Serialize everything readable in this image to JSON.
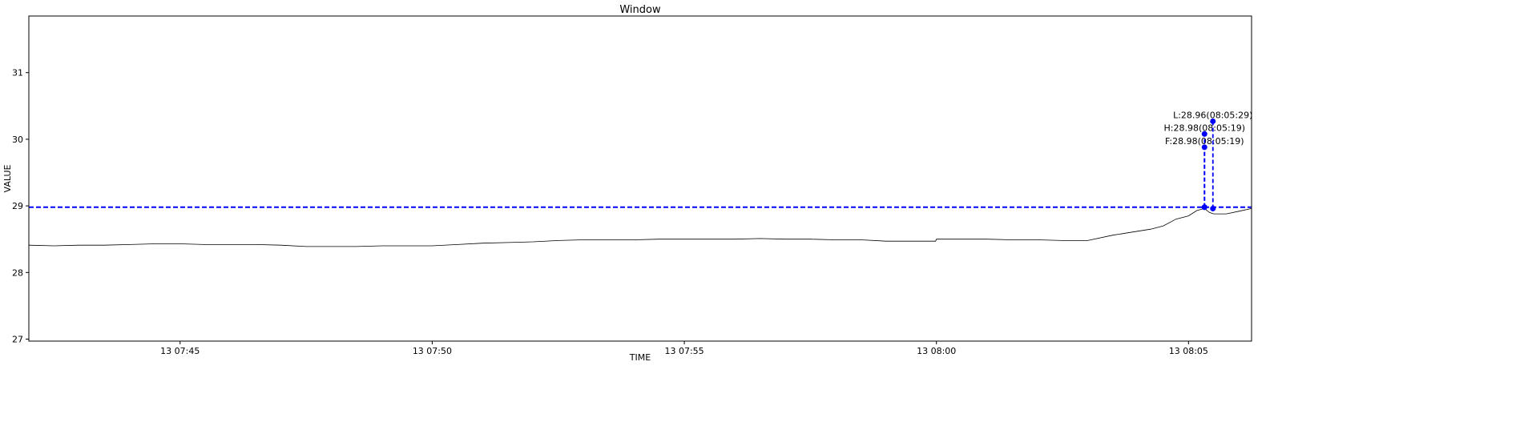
{
  "chart_data": {
    "type": "line",
    "title": "Window",
    "xlabel": "TIME",
    "ylabel": "VALUE",
    "xlim": [
      "07:42:00",
      "08:06:15"
    ],
    "ylim": [
      26.97,
      31.85
    ],
    "x_ticks": [
      {
        "time": "07:45:00",
        "label": "13 07:45"
      },
      {
        "time": "07:50:00",
        "label": "13 07:50"
      },
      {
        "time": "07:55:00",
        "label": "13 07:55"
      },
      {
        "time": "08:00:00",
        "label": "13 08:00"
      },
      {
        "time": "08:05:00",
        "label": "13 08:05"
      }
    ],
    "y_ticks": [
      27,
      28,
      29,
      30,
      31
    ],
    "grid": false,
    "colors": {
      "series": "#000000",
      "markers": "#0000ff"
    },
    "series": [
      {
        "values": [
          [
            "07:42:00",
            28.41
          ],
          [
            "07:42:30",
            28.4
          ],
          [
            "07:43:00",
            28.41
          ],
          [
            "07:43:30",
            28.41
          ],
          [
            "07:44:00",
            28.42
          ],
          [
            "07:44:30",
            28.43
          ],
          [
            "07:45:00",
            28.43
          ],
          [
            "07:45:30",
            28.42
          ],
          [
            "07:46:00",
            28.42
          ],
          [
            "07:46:30",
            28.42
          ],
          [
            "07:47:00",
            28.41
          ],
          [
            "07:47:30",
            28.39
          ],
          [
            "07:48:00",
            28.39
          ],
          [
            "07:48:30",
            28.39
          ],
          [
            "07:49:00",
            28.4
          ],
          [
            "07:49:30",
            28.4
          ],
          [
            "07:50:00",
            28.4
          ],
          [
            "07:50:30",
            28.42
          ],
          [
            "07:51:00",
            28.44
          ],
          [
            "07:51:30",
            28.45
          ],
          [
            "07:52:00",
            28.46
          ],
          [
            "07:52:30",
            28.48
          ],
          [
            "07:53:00",
            28.49
          ],
          [
            "07:53:30",
            28.49
          ],
          [
            "07:54:00",
            28.49
          ],
          [
            "07:54:30",
            28.5
          ],
          [
            "07:55:00",
            28.5
          ],
          [
            "07:55:30",
            28.5
          ],
          [
            "07:56:00",
            28.5
          ],
          [
            "07:56:30",
            28.51
          ],
          [
            "07:57:00",
            28.5
          ],
          [
            "07:57:30",
            28.5
          ],
          [
            "07:58:00",
            28.49
          ],
          [
            "07:58:30",
            28.49
          ],
          [
            "07:59:00",
            28.47
          ],
          [
            "07:59:30",
            28.47
          ],
          [
            "07:59:59",
            28.47
          ],
          [
            "08:00:00",
            28.5
          ],
          [
            "08:00:30",
            28.5
          ],
          [
            "08:01:00",
            28.5
          ],
          [
            "08:01:30",
            28.49
          ],
          [
            "08:02:00",
            28.49
          ],
          [
            "08:02:30",
            28.48
          ],
          [
            "08:03:00",
            28.48
          ],
          [
            "08:03:30",
            28.56
          ],
          [
            "08:04:00",
            28.62
          ],
          [
            "08:04:15",
            28.65
          ],
          [
            "08:04:30",
            28.7
          ],
          [
            "08:04:45",
            28.8
          ],
          [
            "08:05:00",
            28.85
          ],
          [
            "08:05:10",
            28.93
          ],
          [
            "08:05:19",
            28.96
          ],
          [
            "08:05:25",
            28.9
          ],
          [
            "08:05:30",
            28.88
          ],
          [
            "08:05:45",
            28.88
          ],
          [
            "08:06:00",
            28.92
          ],
          [
            "08:06:15",
            28.96
          ]
        ]
      }
    ],
    "hline": {
      "y": 28.98,
      "style": "dashed"
    },
    "markers": [
      {
        "time": "08:05:19",
        "value": 28.98,
        "text_y": 29.88,
        "label": "F:28.98(08:05:19)"
      },
      {
        "time": "08:05:19",
        "value": 28.98,
        "text_y": 30.08,
        "label": "H:28.98(08:05:19)"
      },
      {
        "time": "08:05:29",
        "value": 28.96,
        "text_y": 30.27,
        "label": "L:28.96(08:05:29)"
      }
    ]
  }
}
